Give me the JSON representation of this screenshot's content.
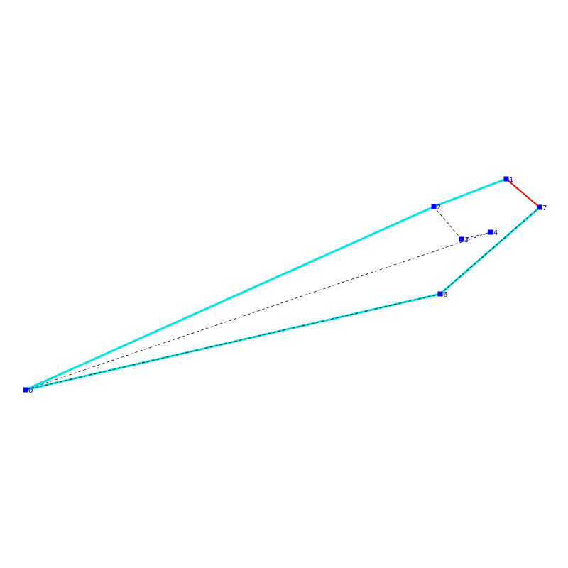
{
  "diagram": {
    "vertices": [
      {
        "id": "v0",
        "label": "0"
      },
      {
        "id": "v1",
        "label": "1"
      },
      {
        "id": "v2",
        "label": "2"
      },
      {
        "id": "v3",
        "label": "3"
      },
      {
        "id": "v4",
        "label": "4"
      },
      {
        "id": "v6",
        "label": "6"
      },
      {
        "id": "v7",
        "label": "7"
      }
    ],
    "edges": [
      {
        "from": "v0",
        "to": "v2",
        "style": "cyan"
      },
      {
        "from": "v2",
        "to": "v1",
        "style": "cyan"
      },
      {
        "from": "v1",
        "to": "v7",
        "style": "red"
      },
      {
        "from": "v7",
        "to": "v6",
        "style": "cyan-dashed"
      },
      {
        "from": "v6",
        "to": "v0",
        "style": "cyan-dashed"
      },
      {
        "from": "v2",
        "to": "v3",
        "style": "dashed"
      },
      {
        "from": "v3",
        "to": "v4",
        "style": "dashed"
      },
      {
        "from": "v4",
        "to": "v0",
        "style": "dashed"
      }
    ],
    "colors": {
      "vertex": "#0000ff",
      "label": "#0000cc",
      "cyan": "#00e5e5",
      "red": "#ff0000",
      "dashed": "#000000"
    }
  }
}
